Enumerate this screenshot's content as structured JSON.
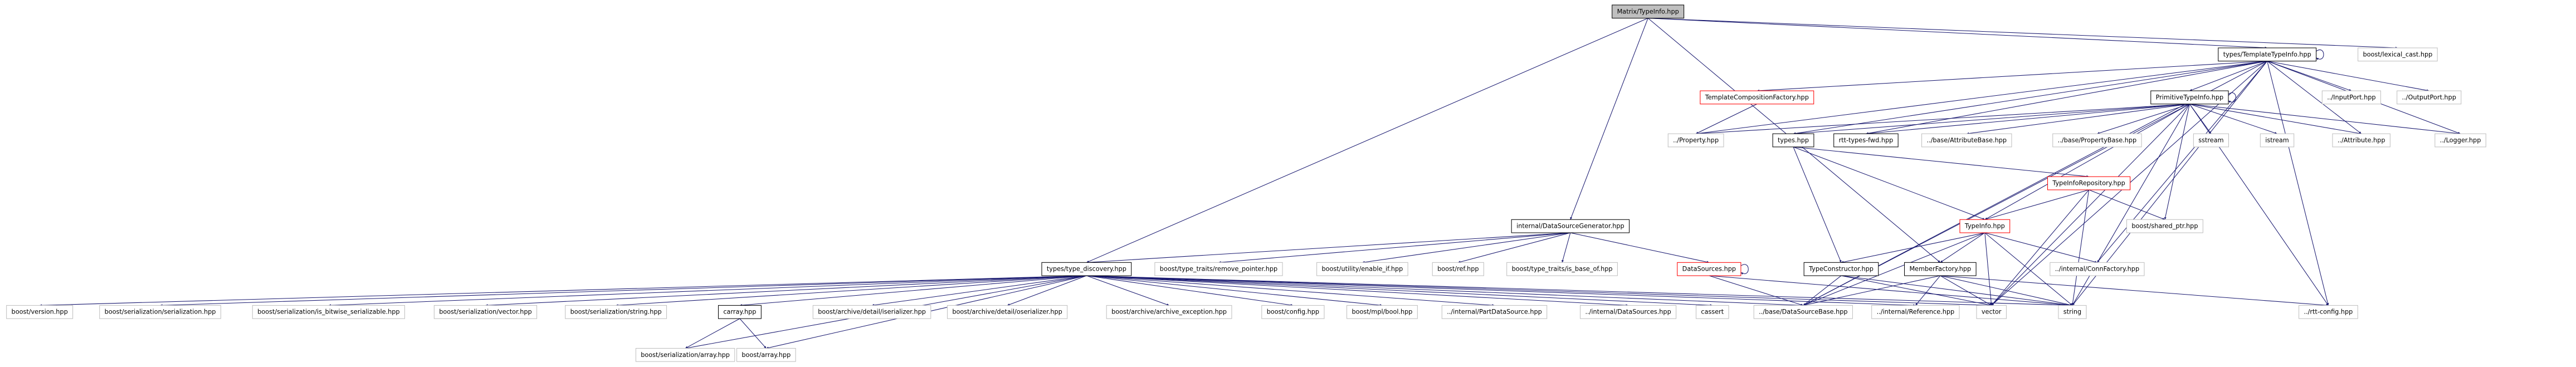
{
  "nodes": [
    {
      "label": "Matrix/TypeInfo.hpp"
    },
    {
      "label": "types/TemplateTypeInfo.hpp"
    },
    {
      "label": "boost/lexical_cast.hpp"
    },
    {
      "label": "TemplateCompositionFactory.hpp"
    },
    {
      "label": "PrimitiveTypeInfo.hpp"
    },
    {
      "label": "../InputPort.hpp"
    },
    {
      "label": "../OutputPort.hpp"
    },
    {
      "label": "../Property.hpp"
    },
    {
      "label": "types.hpp"
    },
    {
      "label": "rtt-types-fwd.hpp"
    },
    {
      "label": "../base/AttributeBase.hpp"
    },
    {
      "label": "../base/PropertyBase.hpp"
    },
    {
      "label": "sstream"
    },
    {
      "label": "istream"
    },
    {
      "label": "../Attribute.hpp"
    },
    {
      "label": "../Logger.hpp"
    },
    {
      "label": "internal/DataSourceGenerator.hpp"
    },
    {
      "label": "TypeInfoRepository.hpp"
    },
    {
      "label": "boost/shared_ptr.hpp"
    },
    {
      "label": "TypeInfo.hpp"
    },
    {
      "label": "types/type_discovery.hpp"
    },
    {
      "label": "boost/type_traits/remove_pointer.hpp"
    },
    {
      "label": "boost/utility/enable_if.hpp"
    },
    {
      "label": "boost/ref.hpp"
    },
    {
      "label": "boost/type_traits/is_base_of.hpp"
    },
    {
      "label": "DataSources.hpp"
    },
    {
      "label": "TypeConstructor.hpp"
    },
    {
      "label": "MemberFactory.hpp"
    },
    {
      "label": "../internal/ConnFactory.hpp"
    },
    {
      "label": "boost/version.hpp"
    },
    {
      "label": "boost/serialization/serialization.hpp"
    },
    {
      "label": "boost/serialization/is_bitwise_serializable.hpp"
    },
    {
      "label": "boost/serialization/vector.hpp"
    },
    {
      "label": "boost/serialization/string.hpp"
    },
    {
      "label": "carray.hpp"
    },
    {
      "label": "boost/archive/detail/iserializer.hpp"
    },
    {
      "label": "boost/archive/detail/oserializer.hpp"
    },
    {
      "label": "boost/archive/archive_exception.hpp"
    },
    {
      "label": "boost/config.hpp"
    },
    {
      "label": "boost/mpl/bool.hpp"
    },
    {
      "label": "../internal/PartDataSource.hpp"
    },
    {
      "label": "../internal/DataSources.hpp"
    },
    {
      "label": "cassert"
    },
    {
      "label": "../base/DataSourceBase.hpp"
    },
    {
      "label": "../internal/Reference.hpp"
    },
    {
      "label": "vector"
    },
    {
      "label": "string"
    },
    {
      "label": "../rtt-config.hpp"
    },
    {
      "label": "boost/serialization/array.hpp"
    },
    {
      "label": "boost/array.hpp"
    }
  ]
}
